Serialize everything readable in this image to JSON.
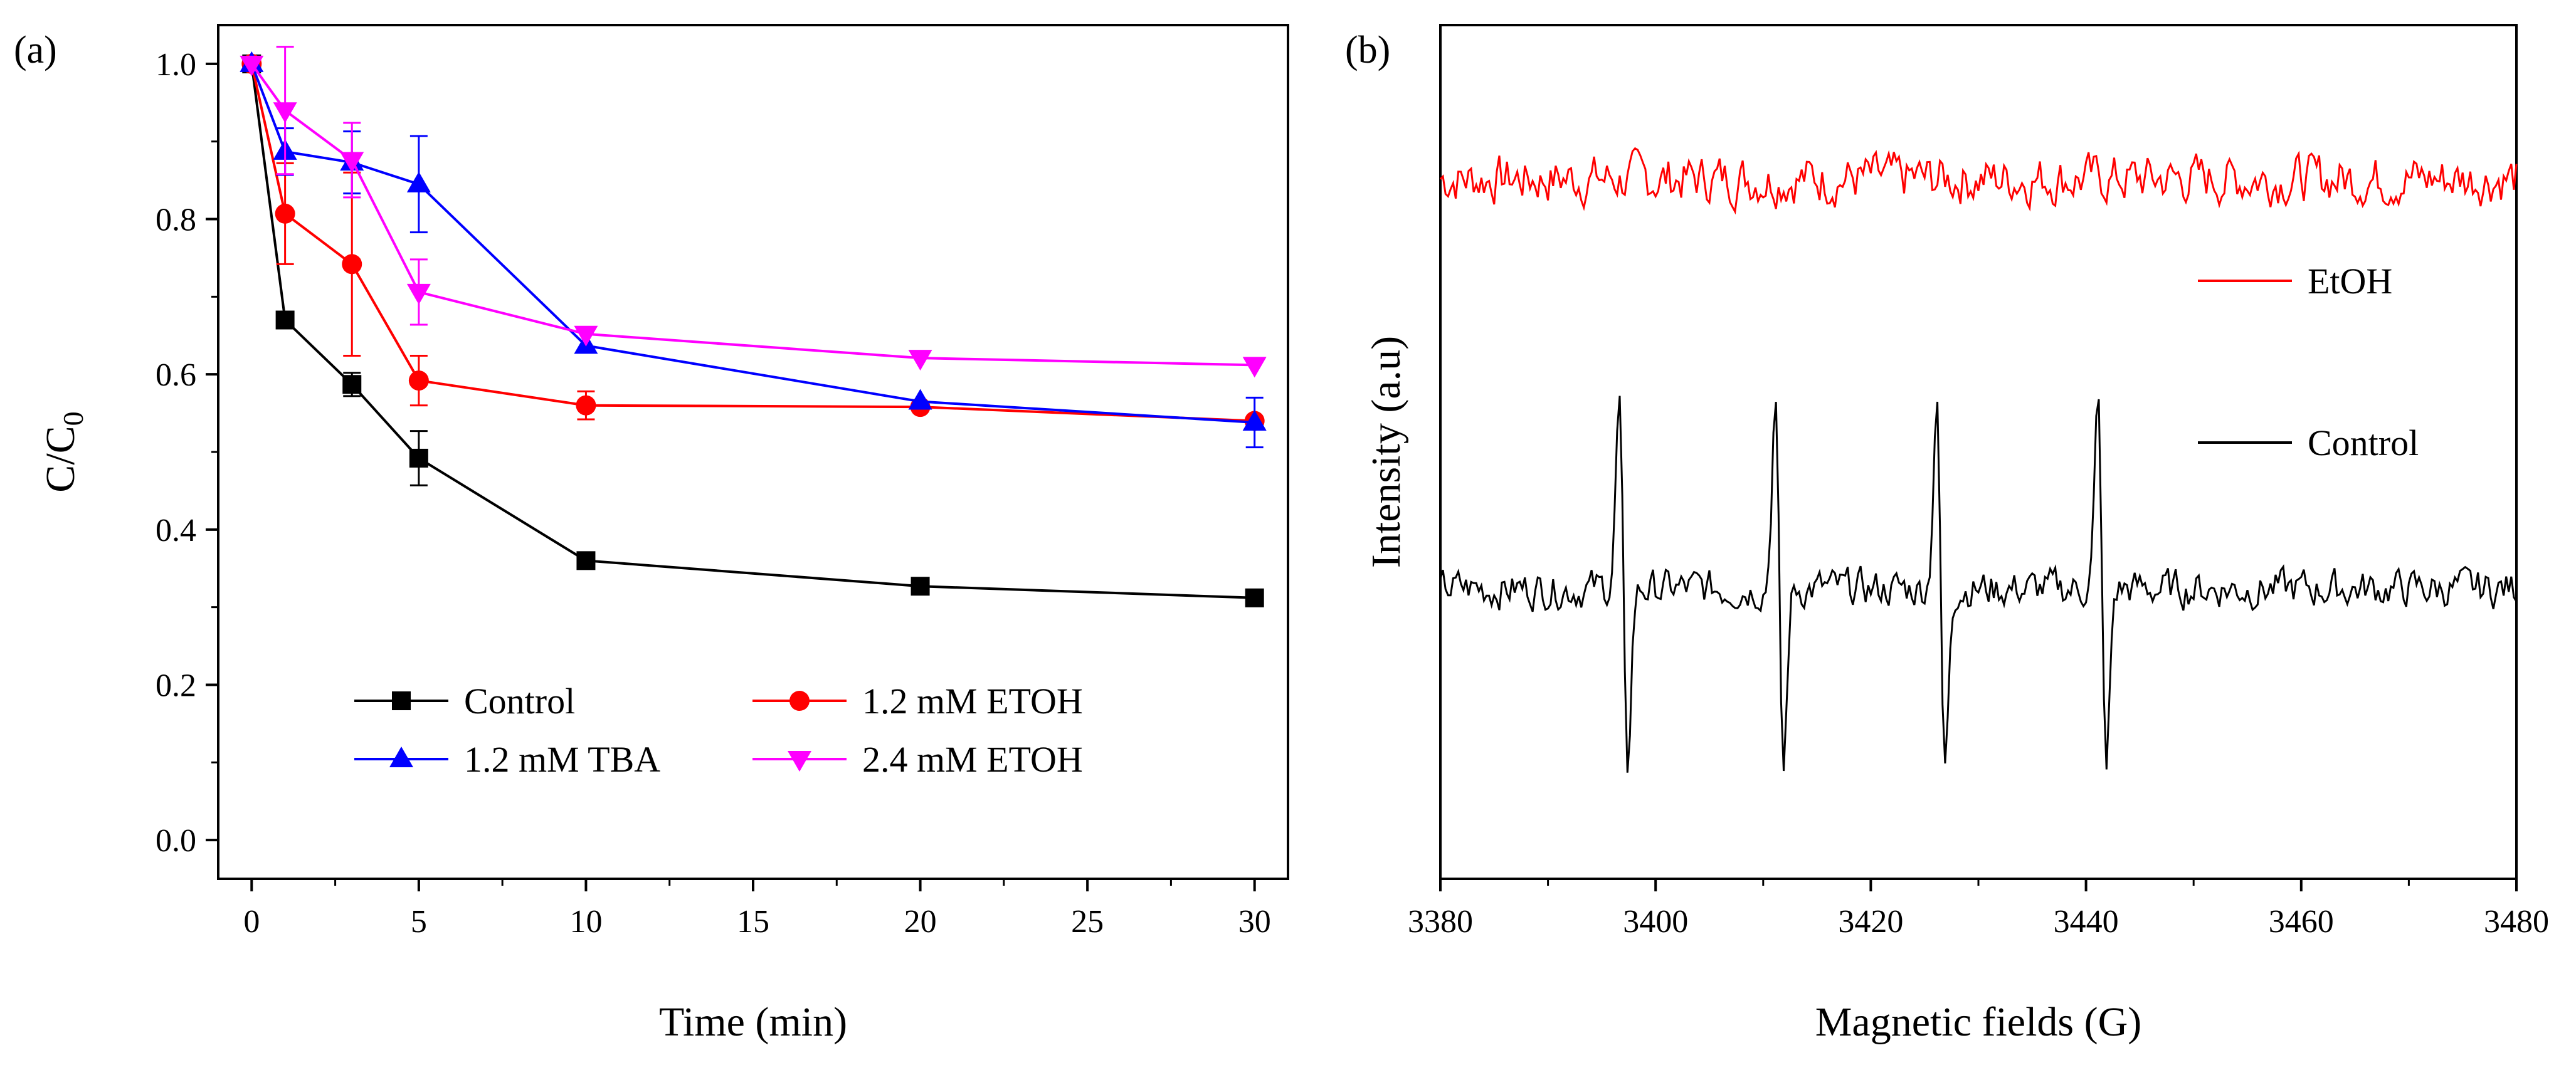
{
  "chart_data": [
    {
      "type": "line",
      "panel_label": "(a)",
      "xlabel": "Time (min)",
      "ylabel_main": "C/C",
      "ylabel_sub": "0",
      "xlim": [
        -1,
        31
      ],
      "ylim": [
        -0.05,
        1.05
      ],
      "xticks": [
        0,
        5,
        10,
        15,
        20,
        25,
        30
      ],
      "yticks": [
        "0.0",
        "0.2",
        "0.4",
        "0.6",
        "0.8",
        "1.0"
      ],
      "x": [
        0,
        1,
        3,
        5,
        10,
        20,
        30
      ],
      "series": [
        {
          "name": "Control",
          "color": "#000000",
          "marker": "square",
          "values": [
            1.0,
            0.67,
            0.587,
            0.492,
            0.36,
            0.327,
            0.312
          ],
          "errors": [
            0.0,
            0.0,
            0.015,
            0.035,
            0.0,
            0.0,
            0.0
          ]
        },
        {
          "name": "1.2 mM ETOH",
          "color": "#ff0000",
          "marker": "circle",
          "values": [
            1.0,
            0.807,
            0.742,
            0.592,
            0.56,
            0.558,
            0.54
          ],
          "errors": [
            0.0,
            0.065,
            0.118,
            0.032,
            0.018,
            0.0,
            0.0
          ]
        },
        {
          "name": "1.2 mM TBA",
          "color": "#0000ff",
          "marker": "triangle-up",
          "values": [
            1.0,
            0.887,
            0.873,
            0.845,
            0.637,
            0.565,
            0.538
          ],
          "errors": [
            0.0,
            0.03,
            0.04,
            0.062,
            0.0,
            0.0,
            0.032
          ]
        },
        {
          "name": "2.4 mM ETOH",
          "color": "#ff00ff",
          "marker": "triangle-down",
          "values": [
            1.0,
            0.94,
            0.876,
            0.706,
            0.652,
            0.621,
            0.612
          ],
          "errors": [
            0.0,
            0.082,
            0.048,
            0.042,
            0.0,
            0.0,
            0.0
          ]
        }
      ],
      "legend_position": "lower-center"
    },
    {
      "type": "line",
      "panel_label": "(b)",
      "xlabel": "Magnetic fields (G)",
      "ylabel": "Intensity (a.u)",
      "xlim": [
        3380,
        3480
      ],
      "xticks": [
        3380,
        3400,
        3420,
        3440,
        3460,
        3480
      ],
      "series": [
        {
          "name": "EtOH",
          "color": "#ff0000",
          "peaks": [],
          "offset": 0.82,
          "noise_amplitude": 0.045
        },
        {
          "name": "Control",
          "color": "#000000",
          "peaks": [
            3397,
            3411.5,
            3426.5,
            3441.5
          ],
          "offset": 0.34,
          "peak_amplitude": 0.23,
          "noise_amplitude": 0.035
        }
      ],
      "legend_position": "right-middle"
    }
  ]
}
